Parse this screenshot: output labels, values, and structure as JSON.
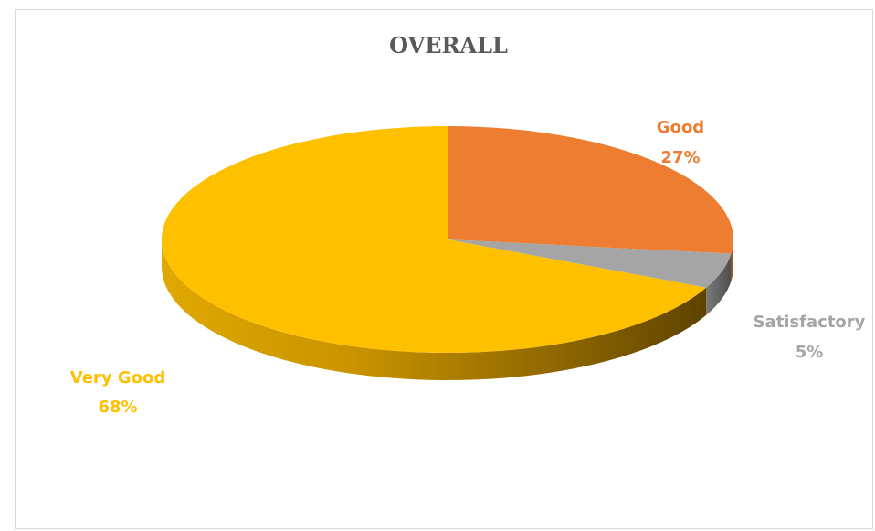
{
  "chart_data": {
    "type": "pie",
    "title": "OVERALL",
    "style": "3d",
    "start_angle_deg": 0,
    "slices": [
      {
        "label": "Good",
        "value": 27,
        "display": "27%",
        "color": "#ED7D31"
      },
      {
        "label": "Satisfactory",
        "value": 5,
        "display": "5%",
        "color": "#A5A5A5"
      },
      {
        "label": "Very Good",
        "value": 68,
        "display": "68%",
        "color": "#FFC000"
      }
    ],
    "legend": "none"
  }
}
